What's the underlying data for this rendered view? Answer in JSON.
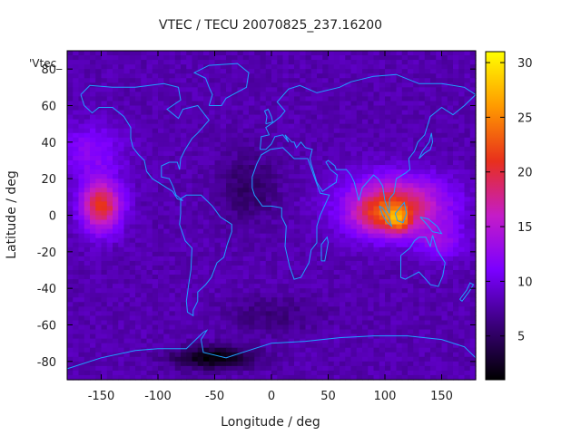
{
  "chart_data": {
    "type": "heatmap",
    "title": "VTEC / TECU 20070825_237.16200",
    "xlabel": "Longitude / deg",
    "ylabel": "Latitude / deg",
    "series_label": "'Vtec_",
    "xlim": [
      -180,
      180
    ],
    "ylim": [
      -90,
      90
    ],
    "x_ticks": [
      "-150",
      "-100",
      "-50",
      "0",
      "50",
      "100",
      "150"
    ],
    "x_tick_values": [
      -150,
      -100,
      -50,
      0,
      50,
      100,
      150
    ],
    "y_ticks": [
      "80",
      "60",
      "40",
      "20",
      "0",
      "-20",
      "-40",
      "-60",
      "-80"
    ],
    "y_tick_values": [
      80,
      60,
      40,
      20,
      0,
      -20,
      -40,
      -60,
      -80
    ],
    "colorbar": {
      "min": 1,
      "max": 31,
      "ticks": [
        "30",
        "25",
        "20",
        "15",
        "10",
        "5"
      ],
      "tick_values": [
        30,
        25,
        20,
        15,
        10,
        5
      ],
      "palette": [
        "#000000",
        "#3a007a",
        "#7a00ff",
        "#c41cc8",
        "#e8301c",
        "#ff9a00",
        "#ffff00"
      ]
    },
    "background_level": 8,
    "anomalies": [
      {
        "lon": -150,
        "lat": 5,
        "lon_width": 18,
        "lat_width": 14,
        "amplitude": 13
      },
      {
        "lon": 110,
        "lat": 5,
        "lon_width": 45,
        "lat_width": 16,
        "amplitude": 12
      },
      {
        "lon": 95,
        "lat": 0,
        "lon_width": 22,
        "lat_width": 10,
        "amplitude": 5
      },
      {
        "lon": 112,
        "lat": -3,
        "lon_width": 10,
        "lat_width": 6,
        "amplitude": 8
      },
      {
        "lon": 150,
        "lat": -15,
        "lon_width": 20,
        "lat_width": 10,
        "amplitude": 4
      },
      {
        "lon": -160,
        "lat": 35,
        "lon_width": 30,
        "lat_width": 15,
        "amplitude": 4
      },
      {
        "lon": -50,
        "lat": -78,
        "lon_width": 35,
        "lat_width": 6,
        "amplitude": -7
      },
      {
        "lon": -20,
        "lat": 15,
        "lon_width": 25,
        "lat_width": 18,
        "amplitude": -3
      },
      {
        "lon": 0,
        "lat": -55,
        "lon_width": 40,
        "lat_width": 10,
        "amplitude": -2
      }
    ],
    "coastline_color": "#1ea0ff"
  }
}
